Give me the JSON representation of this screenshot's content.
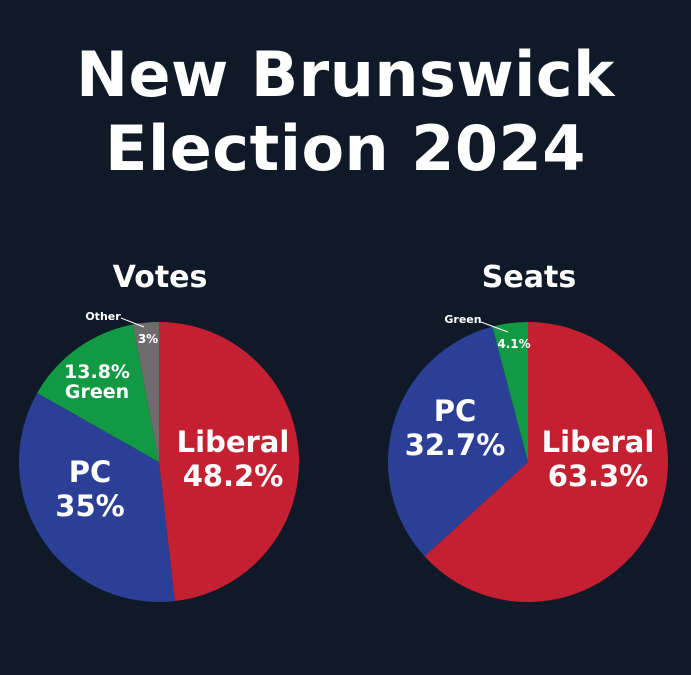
{
  "title": {
    "line1": "New Brunswick",
    "line2": "Election 2024"
  },
  "colors": {
    "background": "#0f1928",
    "liberal": "#c42032",
    "pc": "#2b3f97",
    "green": "#119944",
    "other": "#6d6d6d"
  },
  "chart_data": [
    {
      "type": "pie",
      "title": "Votes",
      "slices": [
        {
          "name": "Liberal",
          "label": "Liberal",
          "value_label": "48.2%",
          "value": 48.2,
          "color": "#c42032"
        },
        {
          "name": "PC",
          "label": "PC",
          "value_label": "35%",
          "value": 35,
          "color": "#2b3f97"
        },
        {
          "name": "Green",
          "label": "Green",
          "value_label": "13.8%",
          "value": 13.8,
          "color": "#119944"
        },
        {
          "name": "Other",
          "label": "Other",
          "value_label": "3%",
          "value": 3,
          "color": "#6d6d6d"
        }
      ]
    },
    {
      "type": "pie",
      "title": "Seats",
      "slices": [
        {
          "name": "Liberal",
          "label": "Liberal",
          "value_label": "63.3%",
          "value": 63.3,
          "color": "#c42032"
        },
        {
          "name": "PC",
          "label": "PC",
          "value_label": "32.7%",
          "value": 32.7,
          "color": "#2b3f97"
        },
        {
          "name": "Green",
          "label": "Green",
          "value_label": "4.1%",
          "value": 4.1,
          "color": "#119944"
        }
      ]
    }
  ]
}
